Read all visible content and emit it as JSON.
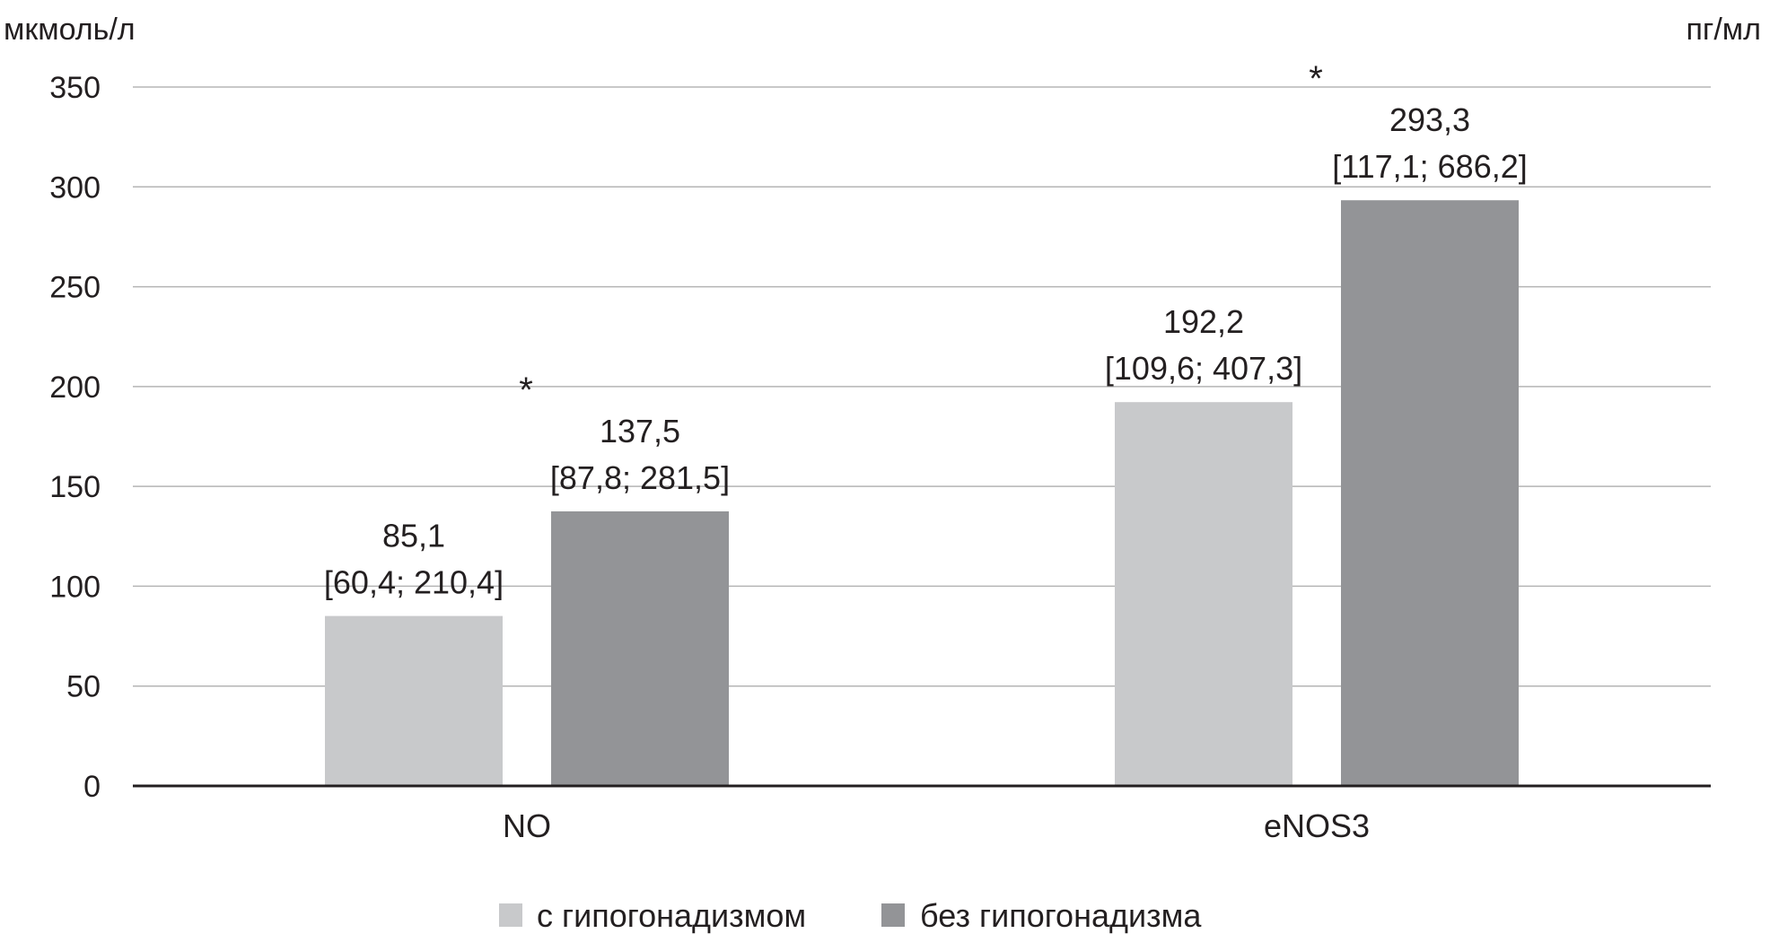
{
  "chart_data": {
    "type": "bar",
    "title": "",
    "xlabel": "",
    "ylabel": "мкмоль/л",
    "ylabel_right": "пг/мл",
    "ylim": [
      0,
      350
    ],
    "yticks": [
      0,
      50,
      100,
      150,
      200,
      250,
      300,
      350
    ],
    "ytick_labels": [
      "0",
      "50",
      "100",
      "150",
      "200",
      "250",
      "300",
      "350"
    ],
    "grid": true,
    "legend_position": "bottom",
    "categories": [
      "NO",
      "eNOS3"
    ],
    "series": [
      {
        "name": "с гипогонадизмом",
        "color": "#c8c9cb",
        "values": [
          85.1,
          192.2
        ],
        "value_labels": [
          "85,1",
          "192,2"
        ],
        "range_labels": [
          "[60,4; 210,4]",
          "[109,6; 407,3]"
        ]
      },
      {
        "name": "без гипогонадизма",
        "color": "#939497",
        "values": [
          137.5,
          293.3
        ],
        "value_labels": [
          "137,5",
          "293,3"
        ],
        "range_labels": [
          "[87,8; 281,5]",
          "[117,1; 686,2]"
        ]
      }
    ],
    "annotations": [
      {
        "category": "NO",
        "text": "*"
      },
      {
        "category": "eNOS3",
        "text": "*"
      }
    ]
  }
}
